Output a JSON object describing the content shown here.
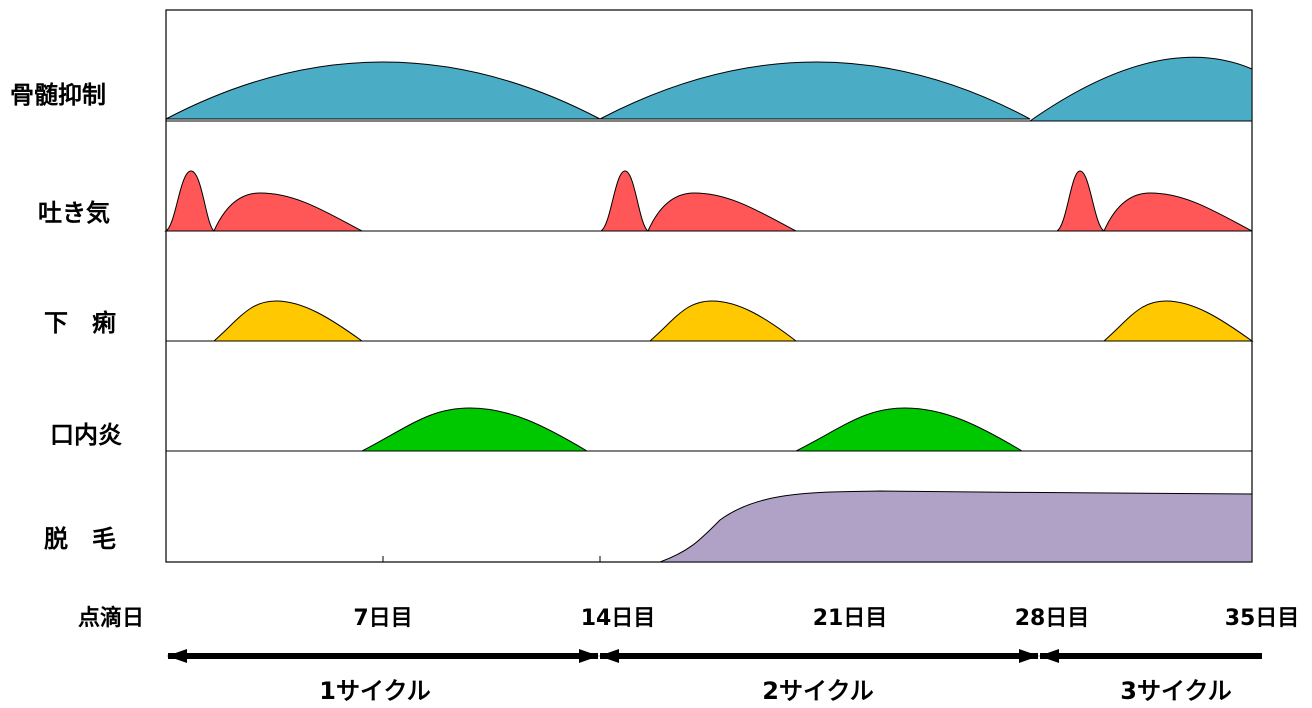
{
  "rows": [
    {
      "label": "骨髄抑制",
      "color": "#4BACC6"
    },
    {
      "label": "吐き気",
      "color": "#FF5757"
    },
    {
      "label": "下　痢",
      "color": "#FFC800"
    },
    {
      "label": "口内炎",
      "color": "#00C800"
    },
    {
      "label": "脱　毛",
      "color": "#B0A2C6"
    }
  ],
  "axis": {
    "start_label": "点滴日",
    "ticks": [
      {
        "day": 7,
        "label": "7日目"
      },
      {
        "day": 14,
        "label": "14日目"
      },
      {
        "day": 21,
        "label": "21日目"
      },
      {
        "day": 28,
        "label": "28日目"
      },
      {
        "day": 35,
        "label": "35日目"
      }
    ]
  },
  "cycles": [
    {
      "label": "1サイクル"
    },
    {
      "label": "2サイクル"
    },
    {
      "label": "3サイクル"
    }
  ]
}
